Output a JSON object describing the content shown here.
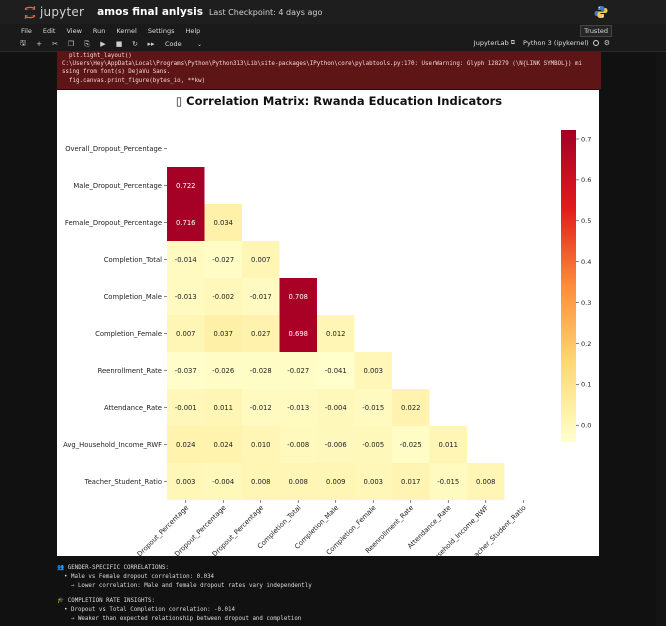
{
  "header": {
    "logo_text": "jupyter",
    "notebook_name": "amos final anlysis",
    "checkpoint": "Last Checkpoint: 4 days ago"
  },
  "menu": {
    "items": [
      "File",
      "Edit",
      "View",
      "Run",
      "Kernel",
      "Settings",
      "Help"
    ],
    "trusted": "Trusted"
  },
  "toolbar": {
    "icons": [
      "save-icon",
      "add-cell-icon",
      "cut-icon",
      "copy-icon",
      "paste-icon",
      "run-icon",
      "stop-icon",
      "restart-icon",
      "fast-forward-icon"
    ],
    "cell_type": "Code",
    "jupyterlab_link": "JupyterLab",
    "kernel": "Python 3 (ipykernel)"
  },
  "stderr": {
    "lines": [
      "  plt.tight_layout()",
      "C:\\Users\\Hey\\AppData\\Local\\Programs\\Python\\Python313\\Lib\\site-packages\\IPython\\core\\pylabtools.py:170: UserWarning: Glyph 128279 (\\N{LINK SYMBOL}) mi",
      "ssing from font(s) DejaVu Sans.",
      "  fig.canvas.print_figure(bytes_io, **kw)"
    ]
  },
  "chart_data": {
    "type": "heatmap",
    "title": "▯ Correlation Matrix: Rwanda Education Indicators",
    "variables": [
      "Overall_Dropout_Percentage",
      "Male_Dropout_Percentage",
      "Female_Dropout_Percentage",
      "Completion_Total",
      "Completion_Male",
      "Completion_Female",
      "Reenrollment_Rate",
      "Attendance_Rate",
      "Avg_Household_Income_RWF",
      "Teacher_Student_Ratio"
    ],
    "mask": "upper triangle including diagonal",
    "lower_triangle": [
      [],
      [
        "0.722"
      ],
      [
        "0.716",
        "0.034"
      ],
      [
        "-0.014",
        "-0.027",
        "0.007"
      ],
      [
        "-0.013",
        "-0.002",
        "-0.017",
        "0.708"
      ],
      [
        "0.007",
        "0.037",
        "0.027",
        "0.698",
        "0.012"
      ],
      [
        "-0.037",
        "-0.026",
        "-0.028",
        "-0.027",
        "-0.041",
        "0.003"
      ],
      [
        "-0.001",
        "0.011",
        "-0.012",
        "-0.013",
        "-0.004",
        "-0.015",
        "0.022"
      ],
      [
        "0.024",
        "0.024",
        "0.010",
        "-0.008",
        "-0.006",
        "-0.005",
        "-0.025",
        "0.011"
      ],
      [
        "0.003",
        "-0.004",
        "0.008",
        "0.008",
        "0.009",
        "0.003",
        "0.017",
        "-0.015",
        "0.008"
      ]
    ],
    "colorbar": {
      "colormap": "YlOrRd",
      "range": [
        -0.041,
        0.722
      ],
      "ticks": [
        "0.7",
        "0.6",
        "0.5",
        "0.4",
        "0.3",
        "0.2",
        "0.1",
        "0.0"
      ]
    }
  },
  "printout": {
    "sections": [
      {
        "icon": "people-icon",
        "head": "GENDER-SPECIFIC CORRELATIONS:",
        "lines": [
          "  • Male vs Female dropout correlation: 0.034",
          "    → Lower correlation: Male and female dropout rates vary independently"
        ]
      },
      {
        "icon": "graduation-icon",
        "head": "COMPLETION RATE INSIGHTS:",
        "lines": [
          "  • Dropout vs Total Completion correlation: -0.014",
          "    → Weaker than expected relationship between dropout and completion"
        ]
      }
    ]
  }
}
